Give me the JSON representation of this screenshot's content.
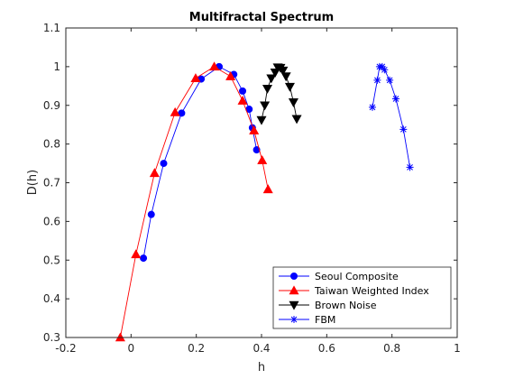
{
  "chart_data": {
    "type": "line",
    "title": "Multifractal Spectrum",
    "xlabel": "h",
    "ylabel": "D(h)",
    "xlim": [
      -0.2,
      1
    ],
    "ylim": [
      0.3,
      1.1
    ],
    "xticks": [
      "-0.2",
      "0",
      "0.2",
      "0.4",
      "0.6",
      "0.8",
      "1"
    ],
    "yticks": [
      "0.3",
      "0.4",
      "0.5",
      "0.6",
      "0.7",
      "0.8",
      "0.9",
      "1",
      "1.1"
    ],
    "grid": false,
    "legend_position": "bottom-right",
    "series": [
      {
        "name": "Seoul Composite",
        "color": "#0000ff",
        "marker": "circle",
        "x": [
          0.038,
          0.062,
          0.1,
          0.155,
          0.215,
          0.27,
          0.315,
          0.342,
          0.362,
          0.372,
          0.385
        ],
        "y": [
          0.505,
          0.618,
          0.75,
          0.88,
          0.968,
          1.0,
          0.98,
          0.937,
          0.89,
          0.842,
          0.785
        ]
      },
      {
        "name": "Taiwan Weighted Index",
        "color": "#ff0000",
        "marker": "triangle-up",
        "x": [
          -0.033,
          0.015,
          0.072,
          0.135,
          0.198,
          0.255,
          0.305,
          0.342,
          0.377,
          0.402,
          0.42
        ],
        "y": [
          0.3,
          0.515,
          0.725,
          0.882,
          0.97,
          1.0,
          0.975,
          0.912,
          0.835,
          0.758,
          0.683
        ]
      },
      {
        "name": "Brown Noise",
        "color": "#000000",
        "marker": "triangle-down",
        "x": [
          0.4,
          0.41,
          0.418,
          0.43,
          0.442,
          0.45,
          0.458,
          0.466,
          0.475,
          0.487,
          0.498,
          0.508
        ],
        "y": [
          0.862,
          0.9,
          0.943,
          0.97,
          0.985,
          0.998,
          0.997,
          0.99,
          0.975,
          0.948,
          0.908,
          0.865
        ]
      },
      {
        "name": "FBM",
        "color": "#0000ff",
        "marker": "asterisk",
        "x": [
          0.74,
          0.755,
          0.762,
          0.77,
          0.777,
          0.793,
          0.812,
          0.835,
          0.855
        ],
        "y": [
          0.895,
          0.965,
          1.0,
          1.0,
          0.992,
          0.965,
          0.917,
          0.838,
          0.74
        ]
      }
    ]
  }
}
